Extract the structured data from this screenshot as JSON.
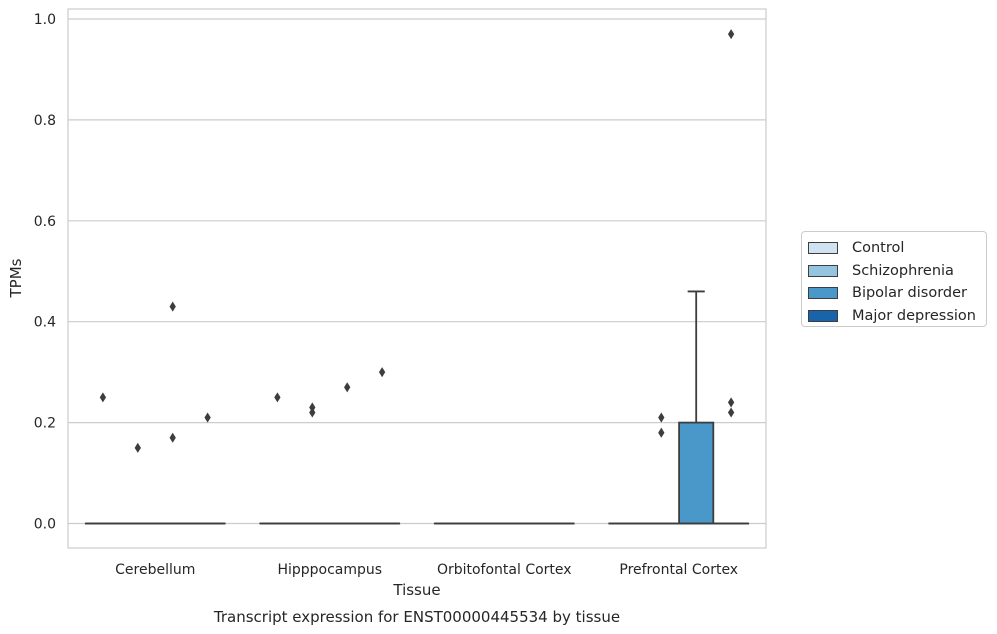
{
  "chart_data": {
    "type": "box",
    "title": "Transcript expression for ENST00000445534 by tissue",
    "xlabel": "Tissue",
    "ylabel": "TPMs",
    "categories": [
      "Cerebellum",
      "Hipppocampus",
      "Orbitofontal Cortex",
      "Prefrontal Cortex"
    ],
    "ylim": [
      -0.048,
      1.02
    ],
    "yticks": [
      "0.0",
      "0.2",
      "0.4",
      "0.6",
      "0.8",
      "1.0"
    ],
    "grid": true,
    "legend_position": "right",
    "series": [
      {
        "name": "Control",
        "color": "#d0e1f2",
        "boxes": [
          {
            "q1": 0,
            "median": 0,
            "q3": 0,
            "whisker_low": 0,
            "whisker_high": 0,
            "outliers": [
              0.25
            ]
          },
          {
            "q1": 0,
            "median": 0,
            "q3": 0,
            "whisker_low": 0,
            "whisker_high": 0,
            "outliers": [
              0.25
            ]
          },
          {
            "q1": 0,
            "median": 0,
            "q3": 0,
            "whisker_low": 0,
            "whisker_high": 0,
            "outliers": []
          },
          {
            "q1": 0,
            "median": 0,
            "q3": 0,
            "whisker_low": 0,
            "whisker_high": 0,
            "outliers": []
          }
        ]
      },
      {
        "name": "Schizophrenia",
        "color": "#94c4df",
        "boxes": [
          {
            "q1": 0,
            "median": 0,
            "q3": 0,
            "whisker_low": 0,
            "whisker_high": 0,
            "outliers": [
              0.15
            ]
          },
          {
            "q1": 0,
            "median": 0,
            "q3": 0,
            "whisker_low": 0,
            "whisker_high": 0,
            "outliers": [
              0.23,
              0.22
            ]
          },
          {
            "q1": 0,
            "median": 0,
            "q3": 0,
            "whisker_low": 0,
            "whisker_high": 0,
            "outliers": []
          },
          {
            "q1": 0,
            "median": 0,
            "q3": 0,
            "whisker_low": 0,
            "whisker_high": 0,
            "outliers": [
              0.21,
              0.18
            ]
          }
        ]
      },
      {
        "name": "Bipolar disorder",
        "color": "#4a98c9",
        "boxes": [
          {
            "q1": 0,
            "median": 0,
            "q3": 0,
            "whisker_low": 0,
            "whisker_high": 0,
            "outliers": [
              0.43,
              0.17
            ]
          },
          {
            "q1": 0,
            "median": 0,
            "q3": 0,
            "whisker_low": 0,
            "whisker_high": 0,
            "outliers": [
              0.27
            ]
          },
          {
            "q1": 0,
            "median": 0,
            "q3": 0,
            "whisker_low": 0,
            "whisker_high": 0,
            "outliers": []
          },
          {
            "q1": 0,
            "median": 0,
            "q3": 0.2,
            "whisker_low": 0,
            "whisker_high": 0.46,
            "outliers": []
          }
        ]
      },
      {
        "name": "Major depression",
        "color": "#1764ab",
        "boxes": [
          {
            "q1": 0,
            "median": 0,
            "q3": 0,
            "whisker_low": 0,
            "whisker_high": 0,
            "outliers": [
              0.21
            ]
          },
          {
            "q1": 0,
            "median": 0,
            "q3": 0,
            "whisker_low": 0,
            "whisker_high": 0,
            "outliers": [
              0.3
            ]
          },
          {
            "q1": 0,
            "median": 0,
            "q3": 0,
            "whisker_low": 0,
            "whisker_high": 0,
            "outliers": []
          },
          {
            "q1": 0,
            "median": 0,
            "q3": 0,
            "whisker_low": 0,
            "whisker_high": 0,
            "outliers": [
              0.97,
              0.24,
              0.22
            ]
          }
        ]
      }
    ]
  }
}
